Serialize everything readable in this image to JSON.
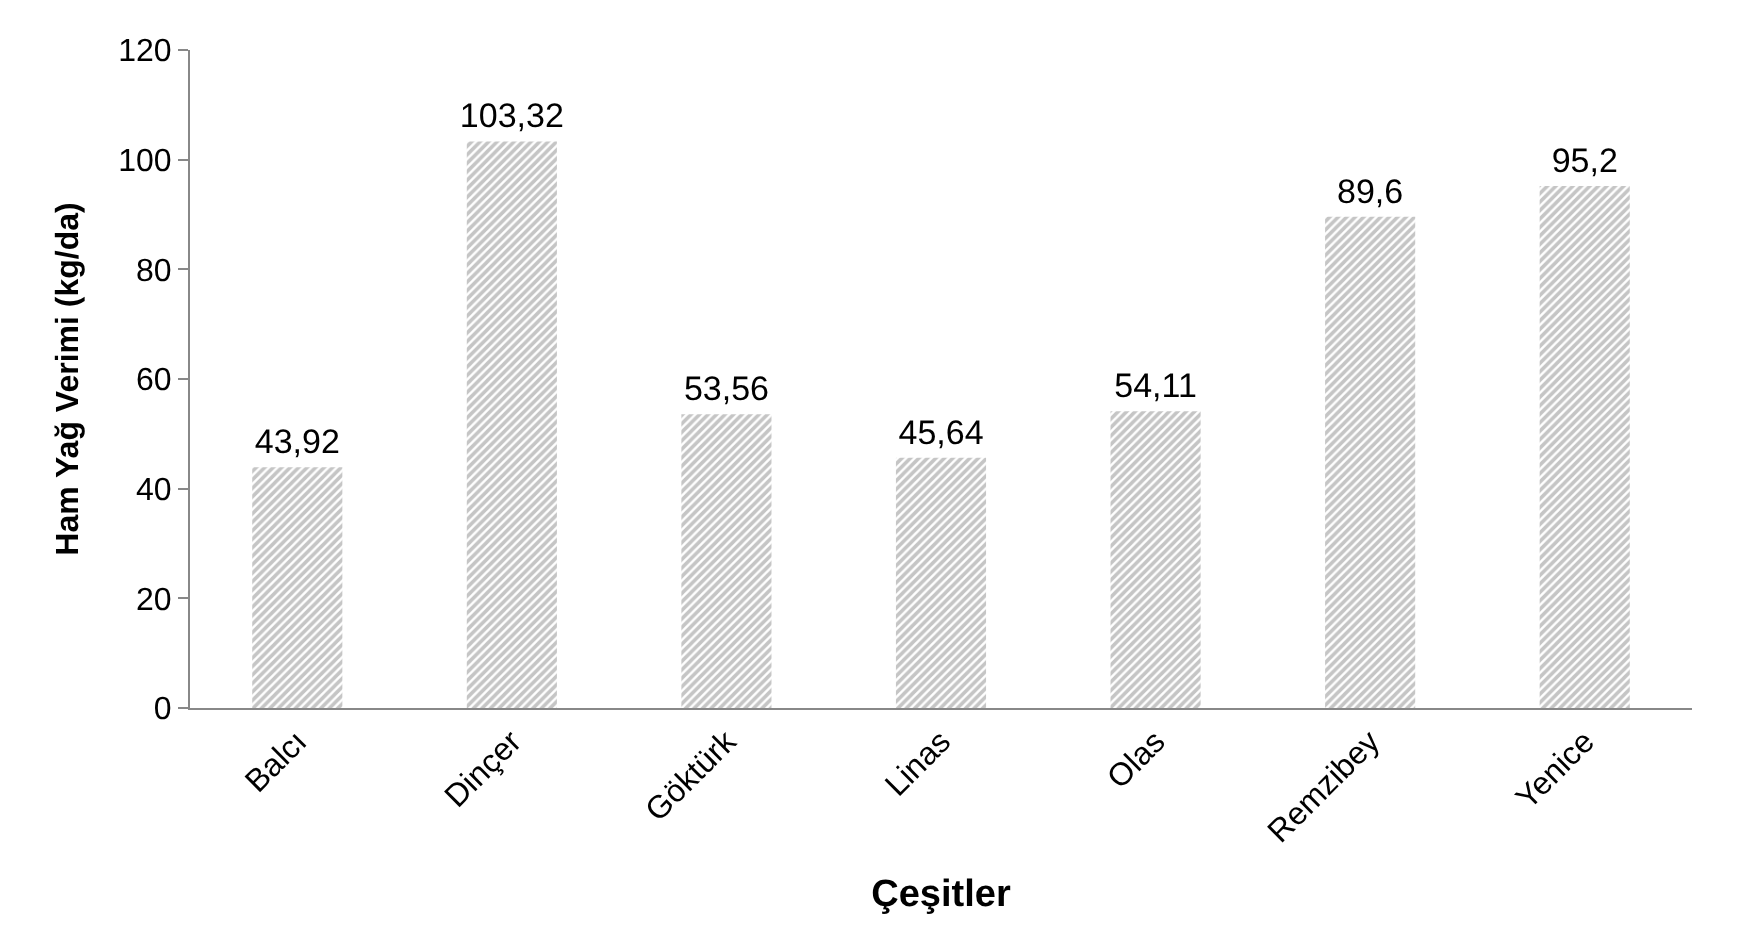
{
  "chart_data": {
    "type": "bar",
    "xlabel": "Çeşitler",
    "ylabel": "Ham Yağ Verimi (kg/da)",
    "categories": [
      "Balcı",
      "Dinçer",
      "Göktürk",
      "Linas",
      "Olas",
      "Remzibey",
      "Yenice"
    ],
    "values": [
      43.92,
      103.32,
      53.56,
      45.64,
      54.11,
      89.6,
      95.2
    ],
    "value_labels": [
      "43,92",
      "103,32",
      "53,56",
      "45,64",
      "54,11",
      "89,6",
      "95,2"
    ],
    "color": "#8c8c8c",
    "ylim": [
      0,
      120
    ],
    "yticks": [
      0,
      20,
      40,
      60,
      80,
      100,
      120
    ],
    "legend": false
  }
}
